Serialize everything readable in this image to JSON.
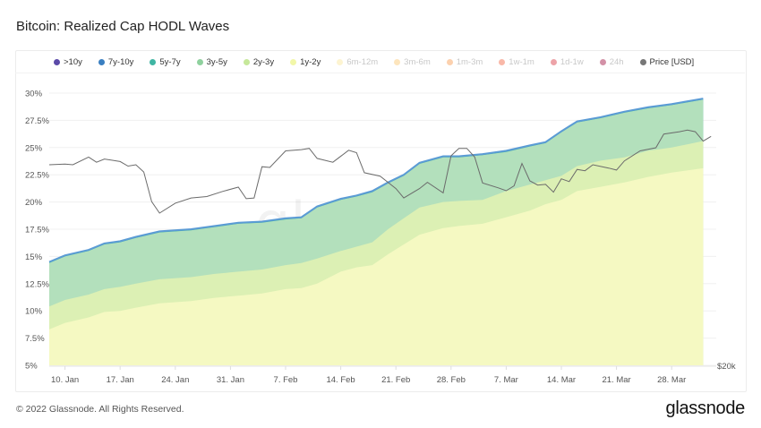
{
  "title": "Bitcoin: Realized Cap HODL Waves",
  "footer": "© 2022 Glassnode. All Rights Reserved.",
  "logo_text": "glassnode",
  "watermark": "glassnode",
  "legend": [
    {
      "label": ">10y",
      "color": "#5b4aa8",
      "active": true
    },
    {
      "label": "7y-10y",
      "color": "#3a7fc1",
      "active": true
    },
    {
      "label": "5y-7y",
      "color": "#3fb5a3",
      "active": true
    },
    {
      "label": "3y-5y",
      "color": "#8fd19e",
      "active": true
    },
    {
      "label": "2y-3y",
      "color": "#c6e89a",
      "active": true
    },
    {
      "label": "1y-2y",
      "color": "#f2f7a8",
      "active": true
    },
    {
      "label": "6m-12m",
      "color": "#fbe79a",
      "active": false
    },
    {
      "label": "3m-6m",
      "color": "#fbc66d",
      "active": false
    },
    {
      "label": "1m-3m",
      "color": "#f99a4c",
      "active": false
    },
    {
      "label": "1w-1m",
      "color": "#f2623f",
      "active": false
    },
    {
      "label": "1d-1w",
      "color": "#d8323f",
      "active": false
    },
    {
      "label": "24h",
      "color": "#9e0b3c",
      "active": false
    },
    {
      "label": "Price [USD]",
      "color": "#777777",
      "active": true
    }
  ],
  "chart_data": {
    "type": "area",
    "stacked": true,
    "title": "Bitcoin: Realized Cap HODL Waves",
    "ylim": [
      5,
      30
    ],
    "y_ticks": [
      "30%",
      "27.5%",
      "25%",
      "22.5%",
      "20%",
      "17.5%",
      "15%",
      "12.5%",
      "10%",
      "7.5%",
      "5%"
    ],
    "y_tick_values": [
      30,
      27.5,
      25,
      22.5,
      20,
      17.5,
      15,
      12.5,
      10,
      7.5,
      5
    ],
    "x_ticks": [
      "10. Jan",
      "17. Jan",
      "24. Jan",
      "31. Jan",
      "7. Feb",
      "14. Feb",
      "21. Feb",
      "28. Feb",
      "7. Mar",
      "14. Mar",
      "21. Mar",
      "28. Mar"
    ],
    "x_tick_dates": [
      "2022-01-10",
      "2022-01-17",
      "2022-01-24",
      "2022-01-31",
      "2022-02-07",
      "2022-02-14",
      "2022-02-21",
      "2022-02-28",
      "2022-03-07",
      "2022-03-14",
      "2022-03-21",
      "2022-03-28"
    ],
    "grid": true,
    "legend_position": "top",
    "x": [
      "2022-01-08",
      "2022-01-10",
      "2022-01-13",
      "2022-01-15",
      "2022-01-17",
      "2022-01-19",
      "2022-01-22",
      "2022-01-26",
      "2022-01-29",
      "2022-02-01",
      "2022-02-04",
      "2022-02-07",
      "2022-02-09",
      "2022-02-11",
      "2022-02-14",
      "2022-02-16",
      "2022-02-18",
      "2022-02-20",
      "2022-02-22",
      "2022-02-24",
      "2022-02-27",
      "2022-03-01",
      "2022-03-04",
      "2022-03-07",
      "2022-03-10",
      "2022-03-12",
      "2022-03-14",
      "2022-03-16",
      "2022-03-19",
      "2022-03-22",
      "2022-03-25",
      "2022-03-28",
      "2022-04-01"
    ],
    "series_cumulative_top": [
      {
        "name": "1y-2y",
        "color": "#f5f9c2",
        "values": [
          8.3,
          8.9,
          9.4,
          9.9,
          10.0,
          10.3,
          10.7,
          10.9,
          11.2,
          11.4,
          11.6,
          12.0,
          12.1,
          12.5,
          13.6,
          14.0,
          14.2,
          15.2,
          16.1,
          17.0,
          17.6,
          17.8,
          18.0,
          18.6,
          19.2,
          19.8,
          20.2,
          21.0,
          21.4,
          21.8,
          22.3,
          22.7,
          23.1
        ]
      },
      {
        "name": "2y-3y",
        "color": "#dcf0b4",
        "values": [
          10.4,
          11.0,
          11.5,
          12.0,
          12.2,
          12.5,
          12.9,
          13.1,
          13.4,
          13.6,
          13.8,
          14.2,
          14.4,
          14.8,
          15.5,
          15.9,
          16.3,
          17.5,
          18.5,
          19.5,
          20.0,
          20.1,
          20.2,
          21.0,
          21.6,
          22.0,
          22.4,
          23.3,
          23.8,
          24.1,
          24.7,
          25.0,
          25.6
        ]
      },
      {
        "name": "3y-5y",
        "color": "#b3e0bc",
        "values": [
          14.4,
          15.0,
          15.5,
          16.1,
          16.3,
          16.7,
          17.2,
          17.4,
          17.7,
          18.0,
          18.1,
          18.4,
          18.5,
          19.5,
          20.2,
          20.5,
          20.9,
          21.7,
          22.4,
          23.5,
          24.1,
          24.1,
          24.3,
          24.6,
          25.1,
          25.4,
          26.4,
          27.3,
          27.7,
          28.2,
          28.6,
          28.9,
          29.4
        ]
      },
      {
        "name": "5y-7y",
        "color": "#3fb5a3",
        "values": [
          14.45,
          15.05,
          15.55,
          16.15,
          16.35,
          16.75,
          17.25,
          17.45,
          17.75,
          18.05,
          18.15,
          18.45,
          18.55,
          19.55,
          20.25,
          20.55,
          20.95,
          21.75,
          22.45,
          23.55,
          24.15,
          24.15,
          24.35,
          24.65,
          25.15,
          25.45,
          26.45,
          27.35,
          27.75,
          28.25,
          28.65,
          28.95,
          29.45
        ]
      },
      {
        "name": "7y-10y",
        "color": "#5b9bd5",
        "values": [
          14.5,
          15.1,
          15.6,
          16.2,
          16.4,
          16.8,
          17.3,
          17.5,
          17.8,
          18.1,
          18.2,
          18.5,
          18.6,
          19.6,
          20.3,
          20.6,
          21.0,
          21.8,
          22.5,
          23.6,
          24.2,
          24.2,
          24.4,
          24.7,
          25.2,
          25.5,
          26.5,
          27.4,
          27.8,
          28.3,
          28.7,
          29.0,
          29.5
        ]
      }
    ],
    "price": {
      "name": "Price [USD]",
      "color": "#6b6b6b",
      "axis_scale": "log",
      "axis_label": "$20k",
      "axis_range": [
        20000,
        54400
      ],
      "x": [
        "2022-01-08",
        "2022-01-10",
        "2022-01-11",
        "2022-01-13",
        "2022-01-14",
        "2022-01-15",
        "2022-01-17",
        "2022-01-18",
        "2022-01-19",
        "2022-01-20",
        "2022-01-21",
        "2022-01-22",
        "2022-01-24",
        "2022-01-26",
        "2022-01-28",
        "2022-01-30",
        "2022-02-01",
        "2022-02-02",
        "2022-02-03",
        "2022-02-04",
        "2022-02-05",
        "2022-02-07",
        "2022-02-09",
        "2022-02-10",
        "2022-02-11",
        "2022-02-13",
        "2022-02-15",
        "2022-02-16",
        "2022-02-17",
        "2022-02-19",
        "2022-02-21",
        "2022-02-22",
        "2022-02-24",
        "2022-02-25",
        "2022-02-27",
        "2022-02-28",
        "2022-03-01",
        "2022-03-02",
        "2022-03-03",
        "2022-03-04",
        "2022-03-06",
        "2022-03-07",
        "2022-03-08",
        "2022-03-09",
        "2022-03-10",
        "2022-03-11",
        "2022-03-12",
        "2022-03-13",
        "2022-03-14",
        "2022-03-15",
        "2022-03-16",
        "2022-03-17",
        "2022-03-18",
        "2022-03-20",
        "2022-03-21",
        "2022-03-22",
        "2022-03-24",
        "2022-03-26",
        "2022-03-27",
        "2022-03-29",
        "2022-03-30",
        "2022-03-31",
        "2022-04-01",
        "2022-04-02"
      ],
      "values": [
        41800,
        41900,
        41800,
        43000,
        42200,
        42700,
        42300,
        41600,
        41800,
        40700,
        36500,
        35000,
        36300,
        37000,
        37200,
        37900,
        38500,
        36900,
        37000,
        41500,
        41400,
        44000,
        44200,
        44400,
        42800,
        42200,
        44100,
        43700,
        40600,
        40100,
        38300,
        37000,
        38300,
        39200,
        37700,
        43200,
        44400,
        44400,
        43000,
        39100,
        38400,
        38000,
        38700,
        42000,
        39400,
        38800,
        38900,
        37800,
        39700,
        39300,
        41100,
        40900,
        41800,
        41300,
        41000,
        42400,
        44000,
        44500,
        46800,
        47200,
        47500,
        47200,
        45600,
        46400
      ]
    }
  }
}
